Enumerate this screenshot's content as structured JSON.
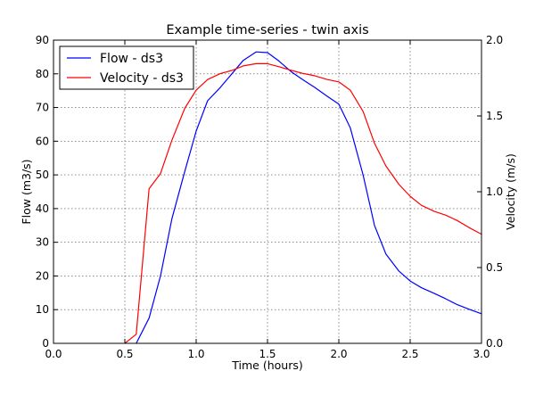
{
  "chart_data": {
    "type": "line",
    "title": "Example time-series - twin axis",
    "xlabel": "Time (hours)",
    "ylabel": "Flow (m3/s)",
    "y2label": "Velocity (m/s)",
    "xlim": [
      0.0,
      3.0
    ],
    "ylim": [
      0,
      90
    ],
    "y2lim": [
      0.0,
      2.0
    ],
    "xticks": [
      "0.0",
      "0.5",
      "1.0",
      "1.5",
      "2.0",
      "2.5",
      "3.0"
    ],
    "yticks": [
      "0",
      "10",
      "20",
      "30",
      "40",
      "50",
      "60",
      "70",
      "80",
      "90"
    ],
    "y2ticks": [
      "0.0",
      "0.5",
      "1.0",
      "1.5",
      "2.0"
    ],
    "grid": true,
    "legend": "top-left",
    "series": [
      {
        "name": "Flow - ds3",
        "axis": "left",
        "color": "#0000ff",
        "x": [
          0.58,
          0.67,
          0.75,
          0.83,
          0.92,
          1.0,
          1.08,
          1.17,
          1.25,
          1.33,
          1.42,
          1.5,
          1.58,
          1.67,
          1.75,
          1.83,
          1.92,
          2.0,
          2.08,
          2.17,
          2.25,
          2.33,
          2.42,
          2.5,
          2.58,
          2.67,
          2.75,
          2.83,
          2.92,
          3.0
        ],
        "y": [
          0,
          7.5,
          20,
          37,
          51,
          63,
          72,
          76,
          80,
          84,
          86.5,
          86.3,
          83.8,
          80.5,
          78.2,
          76,
          73.3,
          71,
          64,
          50,
          35,
          26.5,
          21.5,
          18.5,
          16.5,
          14.8,
          13.2,
          11.5,
          10,
          8.8
        ]
      },
      {
        "name": "Velocity - ds3",
        "axis": "right",
        "color": "#ff0000",
        "x": [
          0.5,
          0.58,
          0.67,
          0.75,
          0.83,
          0.92,
          1.0,
          1.08,
          1.17,
          1.25,
          1.33,
          1.42,
          1.5,
          1.58,
          1.67,
          1.75,
          1.83,
          1.92,
          2.0,
          2.08,
          2.17,
          2.25,
          2.33,
          2.42,
          2.5,
          2.58,
          2.67,
          2.75,
          2.83,
          2.92,
          3.0
        ],
        "y": [
          0,
          0.06,
          1.02,
          1.12,
          1.34,
          1.55,
          1.67,
          1.74,
          1.78,
          1.8,
          1.83,
          1.845,
          1.845,
          1.825,
          1.8,
          1.78,
          1.765,
          1.74,
          1.725,
          1.67,
          1.53,
          1.32,
          1.17,
          1.05,
          0.97,
          0.91,
          0.87,
          0.845,
          0.81,
          0.76,
          0.72
        ]
      }
    ]
  }
}
